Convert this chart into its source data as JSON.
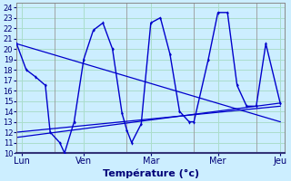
{
  "title": "Température (°c)",
  "bg_color": "#cceeff",
  "line_color": "#0000cc",
  "grid_color": "#aaddcc",
  "yticks": [
    10,
    11,
    12,
    13,
    14,
    15,
    16,
    17,
    18,
    19,
    20,
    21,
    22,
    23,
    24
  ],
  "ylim": [
    10,
    24.4
  ],
  "xlim": [
    0,
    28
  ],
  "xtick_positions": [
    0.5,
    7,
    14,
    21,
    27.5
  ],
  "xtick_labels": [
    "Lun",
    "Ven",
    "Mar",
    "Mer",
    "Jeu"
  ],
  "vlines": [
    4,
    11.5,
    18.5,
    25
  ],
  "series": [
    [
      0,
      20.5
    ],
    [
      1,
      18.0
    ],
    [
      2,
      17.3
    ],
    [
      3,
      16.5
    ],
    [
      3.5,
      12.0
    ],
    [
      4.5,
      11.0
    ],
    [
      5,
      10.0
    ],
    [
      6,
      13.0
    ],
    [
      7,
      19.0
    ],
    [
      8,
      21.8
    ],
    [
      9,
      22.5
    ],
    [
      10,
      20.0
    ],
    [
      11,
      13.8
    ],
    [
      11.5,
      12.2
    ],
    [
      12,
      11.0
    ],
    [
      13,
      12.8
    ],
    [
      14,
      22.5
    ],
    [
      15,
      23.0
    ],
    [
      16,
      19.5
    ],
    [
      17,
      14.0
    ],
    [
      18,
      13.0
    ],
    [
      18.5,
      13.0
    ],
    [
      20,
      19.0
    ],
    [
      21,
      23.5
    ],
    [
      22,
      23.5
    ],
    [
      23,
      16.5
    ],
    [
      24,
      14.5
    ],
    [
      25,
      14.5
    ],
    [
      26,
      20.5
    ],
    [
      27.5,
      14.8
    ]
  ],
  "line2": [
    [
      0,
      20.5
    ],
    [
      27.5,
      13.0
    ]
  ],
  "line3": [
    [
      0,
      12.0
    ],
    [
      27.5,
      14.5
    ]
  ],
  "line4": [
    [
      0,
      11.5
    ],
    [
      27.5,
      14.8
    ]
  ]
}
